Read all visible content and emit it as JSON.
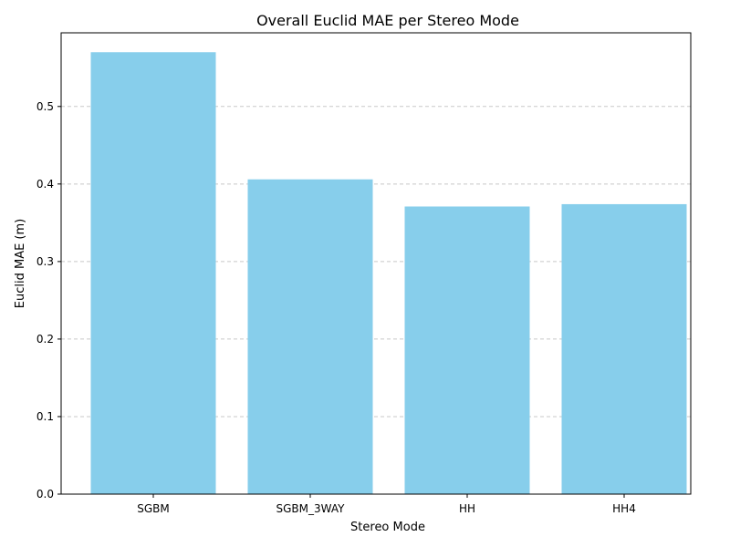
{
  "chart_data": {
    "type": "bar",
    "title": "Overall Euclid MAE per Stereo Mode",
    "xlabel": "Stereo Mode",
    "ylabel": "Euclid MAE (m)",
    "categories": [
      "SGBM",
      "SGBM_3WAY",
      "HH",
      "HH4"
    ],
    "values": [
      0.57,
      0.406,
      0.371,
      0.374
    ],
    "ylim": [
      0,
      0.595
    ],
    "yticks": [
      0.0,
      0.1,
      0.2,
      0.3,
      0.4,
      0.5
    ],
    "ytick_labels": [
      "0.0",
      "0.1",
      "0.2",
      "0.3",
      "0.4",
      "0.5"
    ],
    "grid": "y-dashed",
    "bar_color": "#87ceeb",
    "grid_color": "#c8c8c8"
  }
}
